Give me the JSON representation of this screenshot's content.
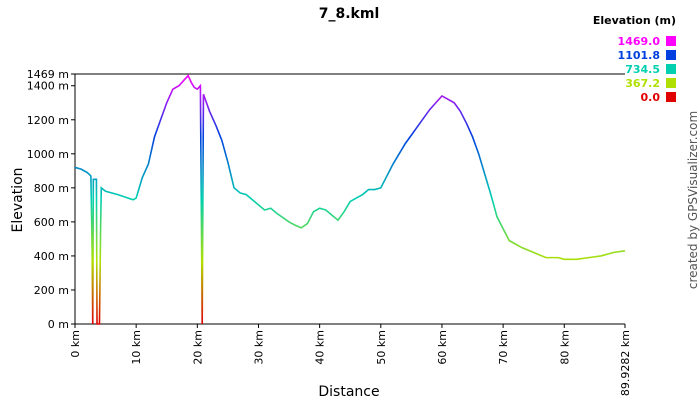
{
  "chart_data": {
    "type": "line",
    "title": "7_8.kml",
    "xlabel": "Distance",
    "ylabel": "Elevation",
    "credit": "created by GPSVisualizer.com",
    "xlim": [
      0,
      89.9282
    ],
    "ylim": [
      0,
      1469
    ],
    "xticks": [
      {
        "value": 0,
        "label": "0 km"
      },
      {
        "value": 10,
        "label": "10 km"
      },
      {
        "value": 20,
        "label": "20 km"
      },
      {
        "value": 30,
        "label": "30 km"
      },
      {
        "value": 40,
        "label": "40 km"
      },
      {
        "value": 50,
        "label": "50 km"
      },
      {
        "value": 60,
        "label": "60 km"
      },
      {
        "value": 70,
        "label": "70 km"
      },
      {
        "value": 80,
        "label": "80 km"
      },
      {
        "value": 89.9282,
        "label": "89.9282 km"
      }
    ],
    "yticks": [
      {
        "value": 0,
        "label": "0 m"
      },
      {
        "value": 200,
        "label": "200 m"
      },
      {
        "value": 400,
        "label": "400 m"
      },
      {
        "value": 600,
        "label": "600 m"
      },
      {
        "value": 800,
        "label": "800 m"
      },
      {
        "value": 1000,
        "label": "1000 m"
      },
      {
        "value": 1200,
        "label": "1200 m"
      },
      {
        "value": 1400,
        "label": "1400 m"
      },
      {
        "value": 1469,
        "label": "1469 m"
      }
    ],
    "legend": {
      "title": "Elevation (m)",
      "items": [
        {
          "value": 1469,
          "label": "1469.0",
          "color": "#ff00ff"
        },
        {
          "value": 1101.8,
          "label": "1101.8",
          "color": "#0040e0"
        },
        {
          "value": 734.5,
          "label": "734.5",
          "color": "#00d0b0"
        },
        {
          "value": 367.2,
          "label": "367.2",
          "color": "#b0e000"
        },
        {
          "value": 0,
          "label": "0.0",
          "color": "#e00000"
        }
      ]
    },
    "series": [
      {
        "name": "Elevation",
        "x": [
          0,
          1,
          2,
          2.6,
          2.8,
          2.9,
          3.0,
          3.5,
          3.6,
          4.0,
          4.2,
          4.3,
          5,
          7,
          9.5,
          10,
          11,
          12,
          13,
          14,
          15,
          16,
          17,
          18,
          18.5,
          19,
          19.5,
          20,
          20.5,
          20.8,
          21,
          22,
          23,
          24,
          25,
          26,
          27,
          28,
          29,
          30,
          31,
          32,
          33,
          35,
          36,
          37,
          38,
          39,
          40,
          41,
          42,
          43,
          44,
          45,
          46,
          47,
          48,
          49,
          50,
          51,
          52,
          53,
          54,
          55,
          56,
          57,
          58,
          59,
          60,
          61,
          62,
          63,
          64,
          65,
          66,
          67,
          68,
          69,
          70,
          71,
          72,
          73,
          75,
          77,
          79,
          80,
          82,
          84,
          86,
          88,
          89.9282
        ],
        "values": [
          920,
          910,
          890,
          870,
          430,
          0,
          850,
          850,
          0,
          0,
          600,
          800,
          780,
          760,
          730,
          740,
          860,
          940,
          1100,
          1200,
          1300,
          1380,
          1400,
          1440,
          1460,
          1420,
          1390,
          1380,
          1400,
          0,
          1350,
          1250,
          1170,
          1080,
          950,
          800,
          770,
          760,
          730,
          700,
          670,
          680,
          650,
          600,
          580,
          565,
          590,
          660,
          680,
          670,
          640,
          610,
          660,
          720,
          740,
          760,
          790,
          790,
          800,
          870,
          940,
          1000,
          1060,
          1110,
          1160,
          1210,
          1260,
          1300,
          1340,
          1320,
          1300,
          1250,
          1180,
          1100,
          1000,
          880,
          760,
          630,
          560,
          490,
          470,
          450,
          420,
          390,
          390,
          380,
          380,
          390,
          400,
          420,
          430
        ]
      }
    ]
  }
}
